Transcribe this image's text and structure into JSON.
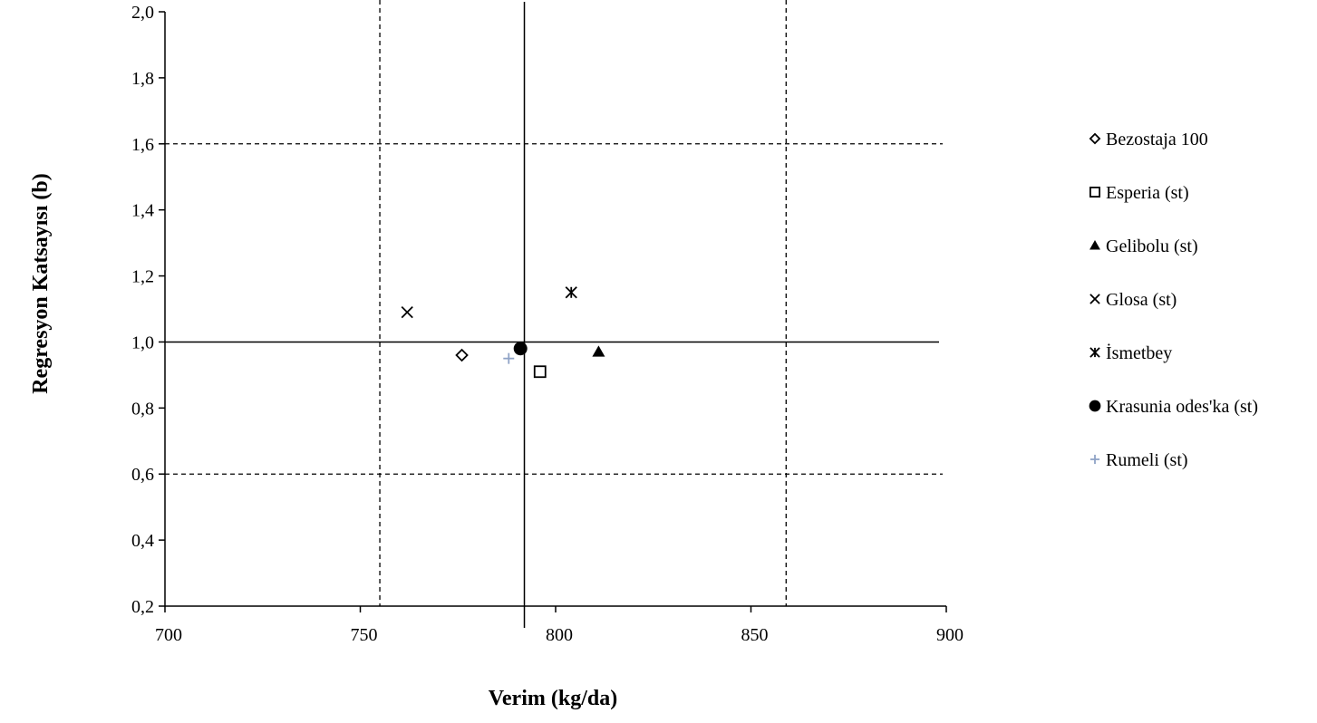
{
  "chart_data": {
    "type": "scatter",
    "title": "",
    "xlabel": "Verim (kg/da)",
    "ylabel": "Regresyon Katsayısı (b)",
    "xlim": [
      700,
      900
    ],
    "ylim": [
      0.2,
      2.0
    ],
    "x_ticks": [
      700,
      750,
      800,
      850,
      900
    ],
    "x_tick_labels": [
      "700",
      "750",
      "800",
      "850",
      "900"
    ],
    "y_ticks": [
      0.2,
      0.4,
      0.6,
      0.8,
      1.0,
      1.2,
      1.4,
      1.6,
      1.8,
      2.0
    ],
    "y_tick_labels": [
      "0,2",
      "0,4",
      "0,6",
      "0,8",
      "1,0",
      "1,2",
      "1,4",
      "1,6",
      "1,8",
      "2,0"
    ],
    "grid": false,
    "legend_position": "right",
    "series": [
      {
        "name": "Bezostaja 100",
        "marker": "diamond-open",
        "color": "#000000",
        "x": [
          776
        ],
        "y": [
          0.96
        ]
      },
      {
        "name": "Esperia (st)",
        "marker": "square-open",
        "color": "#000000",
        "x": [
          796
        ],
        "y": [
          0.91
        ]
      },
      {
        "name": "Gelibolu (st)",
        "marker": "triangle-filled",
        "color": "#000000",
        "x": [
          811
        ],
        "y": [
          0.97
        ]
      },
      {
        "name": "Glosa (st)",
        "marker": "x",
        "color": "#000000",
        "x": [
          762
        ],
        "y": [
          1.09
        ]
      },
      {
        "name": "İsmetbey",
        "marker": "asterisk",
        "color": "#000000",
        "x": [
          804
        ],
        "y": [
          1.15
        ]
      },
      {
        "name": "Krasunia odes'ka (st)",
        "marker": "circle-filled",
        "color": "#000000",
        "x": [
          791
        ],
        "y": [
          0.98
        ]
      },
      {
        "name": "Rumeli (st)",
        "marker": "plus",
        "color": "#8fa3c6",
        "x": [
          788
        ],
        "y": [
          0.95
        ]
      }
    ],
    "reference_lines": {
      "solid": {
        "x": 792,
        "y": 1.0
      },
      "dashed": {
        "x": [
          755,
          859
        ],
        "y": [
          0.6,
          1.6
        ]
      }
    }
  }
}
